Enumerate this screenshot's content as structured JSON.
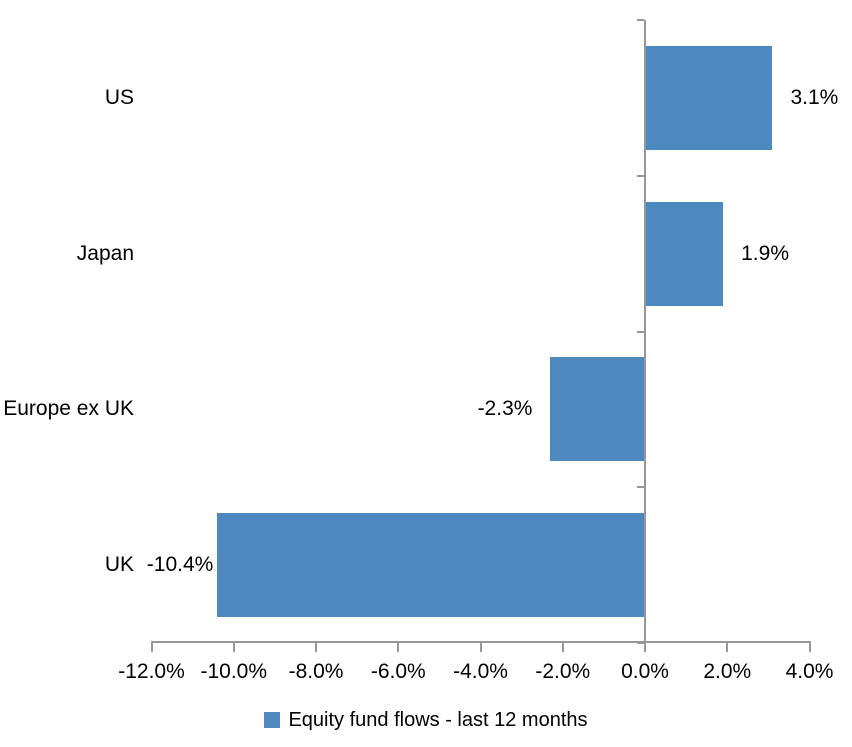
{
  "chart_data": {
    "type": "bar",
    "orientation": "horizontal",
    "title": "",
    "categories": [
      "US",
      "Japan",
      "Europe ex UK",
      "UK"
    ],
    "series": [
      {
        "name": "Equity fund flows - last 12 months",
        "values": [
          3.1,
          1.9,
          -2.3,
          -10.4
        ],
        "value_labels": [
          "3.1%",
          "1.9%",
          "-2.3%",
          "-10.4%"
        ]
      }
    ],
    "xlabel": "",
    "ylabel": "",
    "xlim": [
      -12,
      4
    ],
    "x_ticks": [
      -12,
      -10,
      -8,
      -6,
      -4,
      -2,
      0,
      2,
      4
    ],
    "x_tick_labels": [
      "-12.0%",
      "-10.0%",
      "-8.0%",
      "-6.0%",
      "-4.0%",
      "-2.0%",
      "0.0%",
      "2.0%",
      "4.0%"
    ],
    "grid": false,
    "legend_position": "bottom",
    "legend": "Equity fund flows - last 12 months",
    "colors": {
      "bar": "#4d89be",
      "axis": "#969696",
      "text": "#000000",
      "background": "#ffffff"
    }
  }
}
